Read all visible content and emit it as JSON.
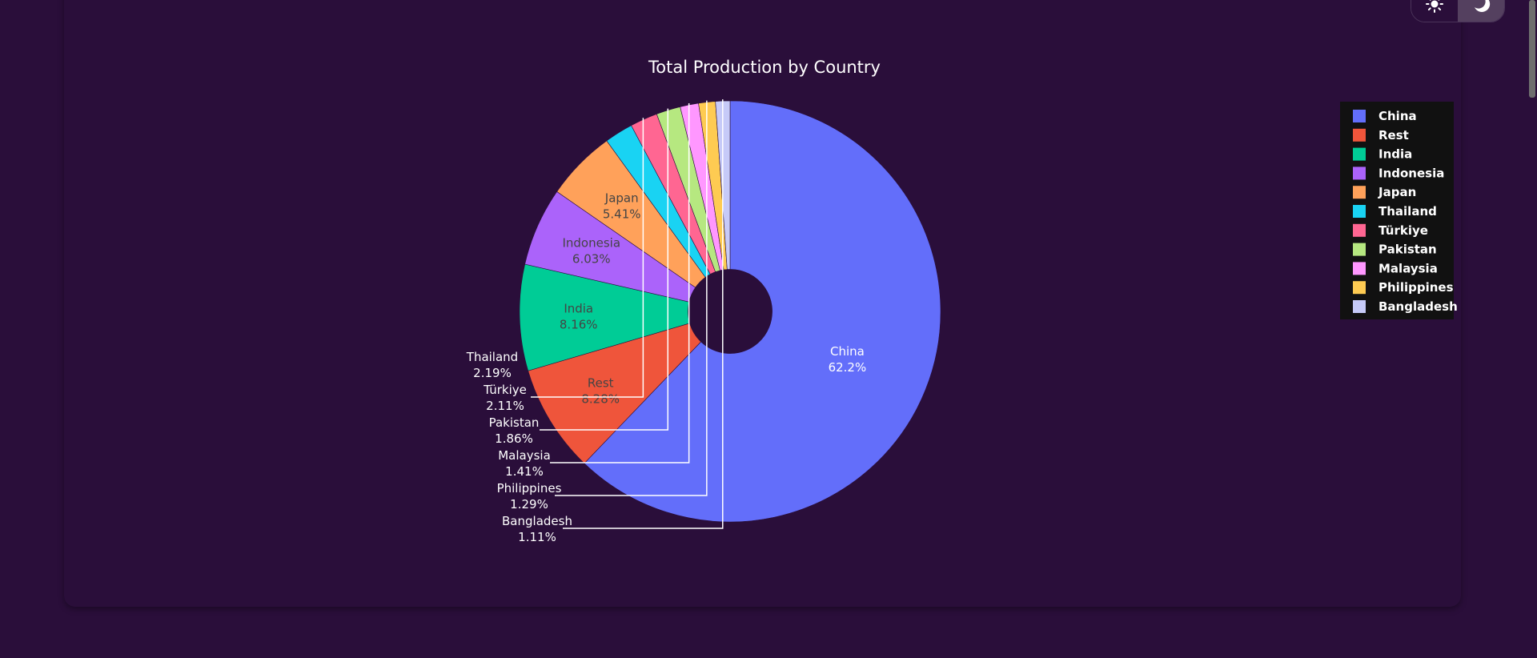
{
  "chart_data": {
    "type": "pie",
    "title": "Total Production by Country",
    "hole": 0.2,
    "labels": [
      "China",
      "Rest",
      "India",
      "Indonesia",
      "Japan",
      "Thailand",
      "Türkiye",
      "Pakistan",
      "Malaysia",
      "Philippines",
      "Bangladesh"
    ],
    "values": [
      62.2,
      8.28,
      8.16,
      6.03,
      5.41,
      2.19,
      2.11,
      1.86,
      1.41,
      1.29,
      1.11
    ],
    "percent_labels": [
      "62.2%",
      "8.28%",
      "8.16%",
      "6.03%",
      "5.41%",
      "2.19%",
      "2.11%",
      "1.86%",
      "1.41%",
      "1.29%",
      "1.11%"
    ],
    "colors": [
      "#636efa",
      "#ef553b",
      "#00cc96",
      "#ab63fa",
      "#ffa15a",
      "#19d3f3",
      "#ff6692",
      "#b6e880",
      "#ff97ff",
      "#fecb52",
      "#c6caf8"
    ],
    "legend": {
      "position": "right",
      "entries": [
        "China",
        "Rest",
        "India",
        "Indonesia",
        "Japan",
        "Thailand",
        "Türkiye",
        "Pakistan",
        "Malaysia",
        "Philippines",
        "Bangladesh"
      ]
    }
  },
  "theme_toggle": {
    "light_icon": "sun-icon",
    "dark_icon": "moon-icon",
    "selected": "dark"
  },
  "colors": {
    "background": "#2a0e3a",
    "legend_background": "#111111",
    "text": "#ffffff"
  }
}
